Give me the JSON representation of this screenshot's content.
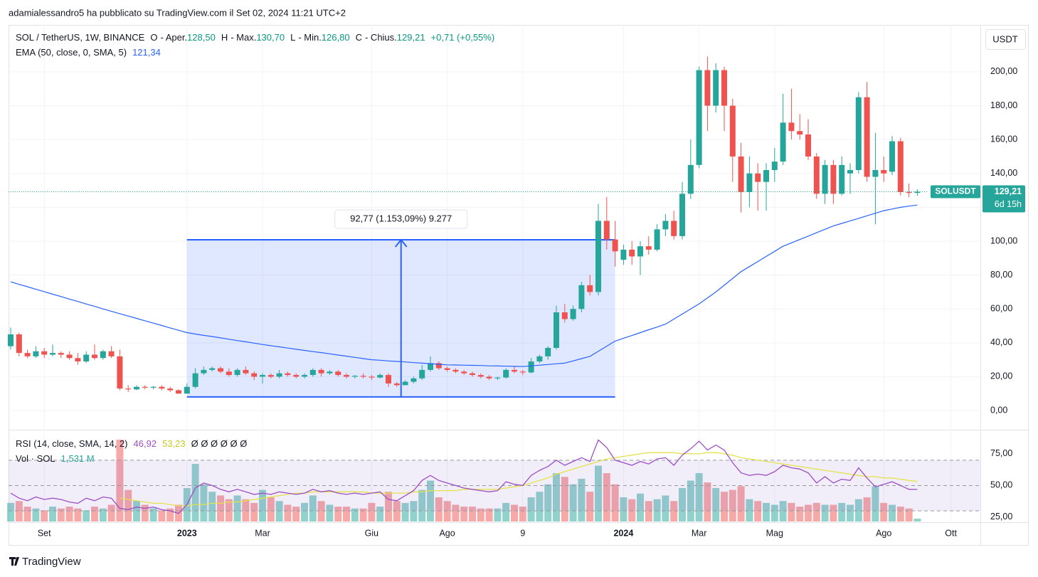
{
  "header": "adamialessandro5 ha pubblicato su TradingView.com il Set 02, 2024 11:21 UTC+2",
  "footer": "TradingView",
  "chart_data": {
    "type": "candlestick",
    "title": "SOL / TetherUS, 1W, BINANCE",
    "ohlc_legend": [
      {
        "key": "O",
        "name": "- Aper.",
        "value": "128,50"
      },
      {
        "key": "H",
        "name": "- Max.",
        "value": "130,70"
      },
      {
        "key": "L",
        "name": "- Min.",
        "value": "126,80"
      },
      {
        "key": "C",
        "name": "- Chius.",
        "value": "129,21"
      }
    ],
    "change": "+0,71 (+0,55%)",
    "currency": "USDT",
    "colors": {
      "up": "#26a69a",
      "down": "#ef5350"
    },
    "categories": [
      null,
      null,
      null,
      null,
      "Set",
      null,
      null,
      null,
      null,
      null,
      null,
      null,
      null,
      null,
      null,
      null,
      null,
      null,
      null,
      null,
      null,
      "2023",
      null,
      null,
      null,
      null,
      null,
      null,
      null,
      null,
      "Mar",
      null,
      null,
      null,
      null,
      null,
      null,
      null,
      null,
      null,
      null,
      null,
      null,
      "Giu",
      null,
      null,
      null,
      null,
      null,
      null,
      null,
      null,
      "Ago",
      null,
      null,
      null,
      null,
      null,
      null,
      null,
      null,
      "9",
      null,
      null,
      null,
      null,
      null,
      null,
      null,
      null,
      null,
      null,
      null,
      "2024",
      null,
      null,
      null,
      null,
      null,
      null,
      null,
      null,
      "Mar",
      null,
      null,
      null,
      null,
      null,
      null,
      null,
      null,
      "Mag",
      null,
      null,
      null,
      null,
      null,
      null,
      null,
      null,
      null,
      null,
      null,
      null,
      "Ago",
      null,
      null,
      null,
      null,
      null,
      null,
      null,
      "Ott"
    ],
    "open": [
      38,
      45,
      34,
      32,
      35,
      33,
      34,
      33,
      31,
      29,
      33,
      31,
      35,
      32,
      13,
      12.5,
      14,
      13.5,
      14,
      13,
      12,
      10,
      14,
      22,
      24,
      25,
      23,
      21,
      24,
      22,
      20,
      21,
      20,
      22,
      21,
      20,
      21,
      24,
      22,
      23,
      21,
      20,
      20.5,
      20,
      19.5,
      21,
      16,
      15,
      17,
      19,
      24,
      28,
      25,
      24,
      23,
      22,
      21,
      20,
      19,
      19.5,
      24,
      23,
      22.5,
      29,
      32,
      37,
      58,
      54,
      60,
      74,
      70,
      112,
      101,
      89,
      95,
      91,
      97,
      95,
      107,
      112,
      103,
      128,
      145,
      201,
      180,
      201,
      180,
      150,
      129,
      140,
      135,
      142,
      147,
      170,
      165,
      163,
      150,
      128,
      145,
      128,
      140,
      142,
      185,
      138,
      142,
      141,
      159,
      129,
      128.5,
      null,
      null,
      null,
      null
    ],
    "high": [
      49,
      46,
      36,
      38,
      37,
      39,
      35,
      35,
      34,
      35,
      39,
      36,
      38,
      36,
      15,
      15,
      15,
      14.5,
      15,
      14,
      12.5,
      16,
      25,
      26,
      26,
      26,
      25,
      25,
      26,
      23,
      22,
      22,
      24,
      23,
      22,
      22,
      25,
      25,
      24,
      24,
      22,
      21,
      22,
      21,
      22,
      22,
      17,
      18,
      20,
      27,
      32,
      29,
      26,
      25,
      24,
      23,
      22,
      21,
      20,
      25,
      26,
      24,
      31,
      33,
      38,
      62,
      63,
      62,
      76,
      80,
      122,
      126,
      112,
      98,
      100,
      100,
      103,
      110,
      116,
      118,
      135,
      160,
      203,
      209,
      205,
      203,
      184,
      158,
      150,
      146,
      146,
      155,
      187,
      190,
      175,
      172,
      152,
      148,
      148,
      150,
      146,
      188,
      194,
      164,
      150,
      162,
      161,
      134,
      130.7,
      null,
      null,
      null,
      null
    ],
    "low": [
      36,
      32,
      31,
      31,
      31,
      32,
      31,
      30,
      27,
      28,
      30,
      30,
      31,
      12,
      11,
      12,
      12.5,
      12.5,
      12,
      11,
      9.9,
      9.9,
      13,
      21,
      23,
      22,
      20,
      20,
      21,
      18,
      16,
      19,
      19,
      20,
      19,
      19,
      20,
      20,
      21,
      20,
      19,
      19,
      19,
      18,
      19,
      14,
      14,
      15,
      16,
      18,
      23,
      24,
      23,
      22,
      21,
      20,
      19,
      18,
      18,
      19,
      22,
      21,
      22,
      28,
      30,
      36,
      52,
      53,
      58,
      68,
      68,
      95,
      85,
      86,
      86,
      80,
      92,
      94,
      103,
      101,
      101,
      125,
      143,
      165,
      176,
      165,
      135,
      117,
      120,
      118,
      118,
      135,
      145,
      160,
      160,
      148,
      125,
      122,
      122,
      127,
      128,
      140,
      135,
      110,
      135,
      139,
      127,
      126,
      126.8,
      null,
      null,
      null,
      null
    ],
    "close": [
      45,
      34,
      32,
      35,
      33,
      34,
      33,
      31,
      29,
      33,
      31,
      35,
      32,
      13,
      12.5,
      14,
      13.5,
      14,
      13,
      12,
      10,
      14,
      22,
      24,
      25,
      23,
      21,
      24,
      22,
      20,
      21,
      20,
      22,
      21,
      20,
      21,
      24,
      22,
      23,
      21,
      20,
      20.5,
      20,
      19.5,
      21,
      16,
      15,
      17,
      19,
      24,
      28,
      25,
      24,
      23,
      22,
      21,
      20,
      19,
      19.5,
      24,
      23,
      22.5,
      29,
      32,
      37,
      58,
      54,
      60,
      74,
      70,
      112,
      101,
      94,
      95,
      91,
      97,
      95,
      107,
      112,
      103,
      128,
      145,
      201,
      180,
      201,
      180,
      150,
      129,
      140,
      135,
      142,
      147,
      170,
      165,
      163,
      150,
      128,
      145,
      128,
      145,
      142,
      185,
      138,
      142,
      140,
      159,
      129,
      128.5,
      129.21,
      null,
      null,
      null,
      null
    ],
    "ylim": [
      -10.9,
      227.7
    ],
    "yticks": [
      {
        "value": 0,
        "label": "0,00"
      },
      {
        "value": 20,
        "label": "20,00"
      },
      {
        "value": 40,
        "label": "40,00"
      },
      {
        "value": 60,
        "label": "60,00"
      },
      {
        "value": 80,
        "label": "80,00"
      },
      {
        "value": 100,
        "label": "100,00"
      },
      {
        "value": 120,
        "label": "120,00"
      },
      {
        "value": 140,
        "label": "140,00"
      },
      {
        "value": 160,
        "label": "160,00"
      },
      {
        "value": 180,
        "label": "180,00"
      },
      {
        "value": 200,
        "label": "200,00"
      }
    ],
    "grid": true,
    "series": [
      {
        "name": "EMA (50, close, 0, SMA, 5)",
        "value_label": "121,34",
        "color": "#2962ff",
        "values": [
          76,
          74.5,
          73.1,
          71.6,
          70.2,
          68.7,
          67.3,
          65.8,
          64.4,
          62.9,
          61.5,
          60,
          58.6,
          57.2,
          55.8,
          54.4,
          53,
          51.6,
          50.2,
          48.8,
          47.4,
          46,
          45.2,
          44.4,
          43.7,
          42.9,
          42.1,
          41.3,
          40.6,
          39.8,
          39,
          38.3,
          37.6,
          36.9,
          36.2,
          35.5,
          34.8,
          34.2,
          33.5,
          32.8,
          32.1,
          31.4,
          30.7,
          30,
          29.7,
          29.3,
          29,
          28.7,
          28.3,
          28,
          27.7,
          27.3,
          27,
          26.9,
          26.8,
          26.7,
          26.6,
          26.4,
          26.3,
          26.2,
          26.1,
          26,
          26.4,
          26.8,
          27.2,
          27.6,
          28,
          29.3,
          30.7,
          32,
          35,
          38,
          41,
          42.7,
          44.3,
          46,
          47.7,
          49.3,
          51,
          54,
          57,
          60,
          63,
          66.5,
          70,
          74,
          78,
          82,
          85,
          88,
          91,
          94,
          97,
          99,
          101,
          103,
          105,
          107,
          109,
          110.5,
          112,
          113.5,
          115,
          116.5,
          118,
          119,
          120,
          120.7,
          121.34,
          null,
          null,
          null,
          null
        ]
      }
    ],
    "last_price": {
      "symbol": "SOLUSDT",
      "label": "129,21",
      "countdown": "6d 15h"
    },
    "measure": {
      "label": "92,77 (1.153,09%) 9.277",
      "x_from": 21,
      "x_to": 72,
      "y_from": 8.05,
      "y_to": 100.82
    },
    "rsi": {
      "name": "RSI (14, close, SMA, 14, 2)",
      "value_label": "46,92",
      "ma_label": "53,23",
      "extra": "Ø Ø Ø Ø Ø Ø",
      "color": "#9c4fc4",
      "ma_color": "#e3e24c",
      "ylim": [
        21.6,
        93.5
      ],
      "yticks": [
        {
          "value": 25,
          "label": "25,00"
        },
        {
          "value": 50,
          "label": "50,00"
        },
        {
          "value": 75,
          "label": "75,00"
        }
      ],
      "levels": [
        70,
        50,
        30
      ],
      "values": [
        44,
        40,
        38,
        41,
        39,
        40,
        39,
        37,
        36,
        40,
        38,
        41,
        40,
        32,
        31,
        33,
        32,
        33,
        31,
        30,
        28,
        35,
        48,
        52,
        50,
        47,
        45,
        47,
        45,
        43,
        44,
        43,
        45,
        44,
        43,
        44,
        47,
        45,
        46,
        44,
        43,
        44,
        43,
        44,
        45,
        39,
        38,
        42,
        46,
        54,
        58,
        54,
        52,
        50,
        48,
        47,
        46,
        45,
        46,
        53,
        51,
        50,
        58,
        62,
        65,
        70,
        66,
        69,
        72,
        69,
        86,
        80,
        70,
        68,
        66,
        69,
        67,
        71,
        72,
        66,
        74,
        79,
        85,
        78,
        82,
        78,
        68,
        60,
        58,
        59,
        58,
        61,
        66,
        64,
        63,
        60,
        52,
        57,
        52,
        55,
        54,
        64,
        56,
        49,
        51,
        53,
        50,
        47,
        46.92,
        null,
        null,
        null,
        null
      ],
      "ma": [
        null,
        null,
        null,
        null,
        null,
        null,
        null,
        null,
        null,
        null,
        null,
        null,
        null,
        40,
        39,
        38,
        37,
        36,
        36,
        35,
        34,
        34,
        35,
        35,
        36,
        36,
        37,
        37,
        38,
        39,
        40,
        41,
        42,
        43,
        44,
        44,
        45,
        45,
        45,
        45,
        45,
        45,
        45,
        44,
        44,
        44,
        44,
        44,
        45,
        45,
        46,
        46,
        46,
        46,
        47,
        47,
        47,
        47,
        47,
        48,
        49,
        50,
        52,
        54,
        56,
        59,
        61,
        63,
        65,
        67,
        69,
        71,
        72,
        73,
        74,
        75,
        76,
        76,
        76,
        76,
        75,
        75,
        75,
        76,
        76,
        75,
        74,
        72,
        71,
        70,
        69,
        68,
        67,
        66,
        65,
        64,
        63,
        62,
        61,
        60,
        59,
        58,
        57,
        57,
        56,
        56,
        55,
        54,
        53.23,
        null,
        null,
        null,
        null
      ]
    },
    "volume": {
      "name": "Vol · SOL",
      "value_label": "1,531 M",
      "values": [
        10,
        11,
        8,
        7,
        6,
        8,
        7,
        8,
        7,
        6,
        8,
        7,
        9,
        44,
        17,
        11,
        9,
        7,
        6,
        7,
        9,
        18,
        31,
        20,
        16,
        14,
        12,
        14,
        12,
        10,
        17,
        13,
        11,
        9,
        8,
        10,
        14,
        11,
        9,
        8,
        8,
        7,
        7,
        10,
        8,
        16,
        11,
        10,
        11,
        17,
        22,
        13,
        11,
        9,
        8,
        8,
        7,
        7,
        7,
        10,
        9,
        8,
        13,
        16,
        20,
        26,
        24,
        20,
        23,
        16,
        30,
        26,
        20,
        13,
        12,
        15,
        11,
        12,
        14,
        11,
        18,
        22,
        26,
        21,
        18,
        16,
        17,
        19,
        12,
        11,
        10,
        9,
        11,
        10,
        8,
        9,
        10,
        9,
        9,
        10,
        9,
        12,
        13,
        19,
        10,
        9,
        8,
        7,
        1.531,
        null,
        null,
        null,
        null
      ]
    }
  }
}
